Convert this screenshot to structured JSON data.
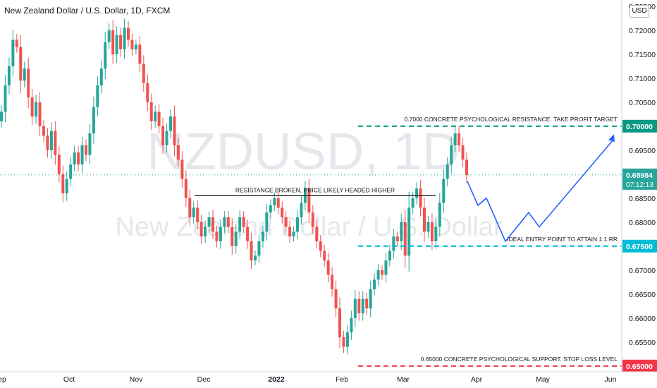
{
  "header": {
    "title": "New Zealand Dollar / U.S. Dollar, 1D, FXCM",
    "currency_badge": "USD"
  },
  "watermark": {
    "symbol": "NZDUSD, 1D",
    "name": "New Zealand Dollar / U.S. Dollar"
  },
  "colors": {
    "up": "#26a69a",
    "down": "#ef5350",
    "projection": "#2962ff",
    "target": "#089981",
    "entry": "#00bcd4",
    "stop": "#f23645"
  },
  "chart_data": {
    "type": "candlestick",
    "x_ticks": [
      "ep",
      "Oct",
      "Nov",
      "Dec",
      "2022",
      "Feb",
      "Mar",
      "Apr",
      "May",
      "Jun"
    ],
    "y_ticks": [
      0.725,
      0.72,
      0.715,
      0.71,
      0.705,
      0.7,
      0.695,
      0.69,
      0.685,
      0.68,
      0.675,
      0.67,
      0.665,
      0.66,
      0.655,
      0.65
    ],
    "y_tick_labels": [
      "0.72500",
      "0.72000",
      "0.71500",
      "0.71000",
      "0.70500",
      "0.70000",
      "0.69500",
      "0.69000",
      "0.68500",
      "0.68000",
      "0.67500",
      "0.67000",
      "0.66500",
      "0.66000",
      "0.65500",
      "0.65000"
    ],
    "ylim": [
      0.6488,
      0.7263
    ],
    "current_price": {
      "value": 0.68984,
      "label": "0.68984",
      "countdown": "07:12:13"
    },
    "closes": [
      0.703,
      0.7085,
      0.7125,
      0.718,
      0.7165,
      0.7095,
      0.712,
      0.706,
      0.702,
      0.705,
      0.7,
      0.698,
      0.695,
      0.699,
      0.694,
      0.69,
      0.686,
      0.689,
      0.692,
      0.6945,
      0.692,
      0.696,
      0.694,
      0.6985,
      0.704,
      0.7085,
      0.712,
      0.7175,
      0.72,
      0.715,
      0.719,
      0.716,
      0.7205,
      0.718,
      0.716,
      0.717,
      0.713,
      0.709,
      0.705,
      0.701,
      0.703,
      0.7,
      0.696,
      0.699,
      0.702,
      0.696,
      0.693,
      0.689,
      0.685,
      0.681,
      0.683,
      0.68,
      0.677,
      0.679,
      0.681,
      0.678,
      0.676,
      0.679,
      0.681,
      0.679,
      0.675,
      0.678,
      0.681,
      0.679,
      0.676,
      0.672,
      0.673,
      0.676,
      0.678,
      0.682,
      0.6835,
      0.685,
      0.683,
      0.681,
      0.679,
      0.677,
      0.678,
      0.681,
      0.684,
      0.687,
      0.682,
      0.679,
      0.676,
      0.674,
      0.672,
      0.669,
      0.666,
      0.662,
      0.656,
      0.654,
      0.657,
      0.66,
      0.664,
      0.661,
      0.664,
      0.662,
      0.666,
      0.668,
      0.67,
      0.669,
      0.672,
      0.674,
      0.677,
      0.676,
      0.68,
      0.673,
      0.683,
      0.685,
      0.687,
      0.683,
      0.678,
      0.68,
      0.676,
      0.679,
      0.684,
      0.689,
      0.692,
      0.696,
      0.6985,
      0.696,
      0.693,
      0.6898
    ],
    "drawn_levels": [
      {
        "price": 0.7,
        "label": "0.7000 CONCRETE PSYCHOLOGICAL RESISTANCE. TAKE PROFIT TARGET",
        "axis_label": "0.70000"
      },
      {
        "price": 0.6855,
        "label": "RESISTANCE BROKEN, PRICE LIKELY HEADED HIGHER"
      },
      {
        "price": 0.675,
        "label": "IDEAL ENTRY POINT TO ATTAIN 1:1 RR",
        "axis_label": "0.67500"
      },
      {
        "price": 0.65,
        "label": "0.65000 CONCRETE PSYCHOLOGICAL SUPPORT. STOP LOSS LEVEL",
        "axis_label": "0.65000"
      }
    ],
    "projection_path": [
      0.6885,
      0.6835,
      0.685,
      0.676,
      0.682,
      0.679,
      0.697
    ]
  }
}
